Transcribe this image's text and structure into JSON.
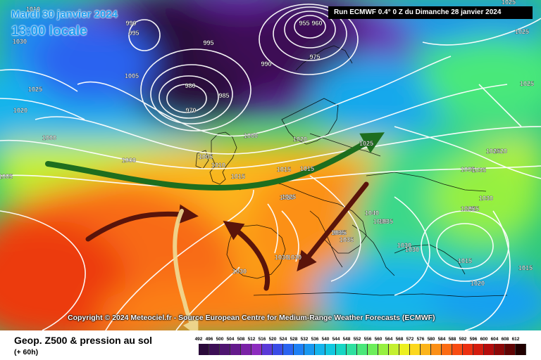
{
  "header": {
    "date": "Mardi 30 janvier 2024",
    "time": "13:00 locale",
    "run": "Run ECMWF 0.4° 0 Z du Dimanche 28 janvier 2024"
  },
  "copyright": "Copyright © 2024 Meteociel.fr - Source European Centre for Medium-Range Weather Forecasts (ECMWF)",
  "footer": {
    "title": "Geop. Z500 & pression au sol",
    "subtitle": "(+ 60h)"
  },
  "scale": {
    "values": [
      "492",
      "496",
      "500",
      "504",
      "508",
      "512",
      "516",
      "520",
      "524",
      "528",
      "532",
      "536",
      "540",
      "544",
      "548",
      "552",
      "556",
      "560",
      "564",
      "568",
      "572",
      "576",
      "580",
      "584",
      "588",
      "592",
      "596",
      "600",
      "604",
      "608",
      "612"
    ],
    "colors": [
      "#2a0a3a",
      "#3c0e55",
      "#4e1470",
      "#641a8c",
      "#7a22a6",
      "#8c2cbe",
      "#5a3ad8",
      "#3a4ce6",
      "#2a64f0",
      "#1e80f4",
      "#1898f0",
      "#14b4ec",
      "#10c8e0",
      "#16d6c4",
      "#2ee0a0",
      "#4ae87a",
      "#6cee5a",
      "#96f040",
      "#c4f030",
      "#ecf020",
      "#fcd81e",
      "#fcb41a",
      "#fc9016",
      "#fc6c14",
      "#f84c12",
      "#ec3010",
      "#d41c0e",
      "#b40c0c",
      "#8c0808",
      "#600404",
      "#200000"
    ]
  },
  "pressure_labels": [
    "1005",
    "1000",
    "995",
    "985",
    "990",
    "1000",
    "1005",
    "1010",
    "1015",
    "1020",
    "1025",
    "1030",
    "1035",
    "1040",
    "975",
    "970",
    "980",
    "960",
    "955",
    "1010",
    "1020",
    "1025",
    "1030",
    "1035",
    "1000",
    "995",
    "990",
    "1025",
    "1005",
    "1015",
    "1020",
    "1025",
    "1015",
    "1035",
    "1030",
    "1025",
    "1040",
    "1035",
    "1030",
    "1035",
    "1030",
    "1015",
    "1015",
    "1020",
    "1025",
    "1030",
    "1020",
    "1025",
    "1025",
    "1030",
    "1035",
    "1025"
  ],
  "colors": {
    "arrow_green": "#1e6e1e",
    "arrow_brown": "#5a140a",
    "arrow_tan": "#f0dc96",
    "time_blue": "#1e9ef0"
  }
}
